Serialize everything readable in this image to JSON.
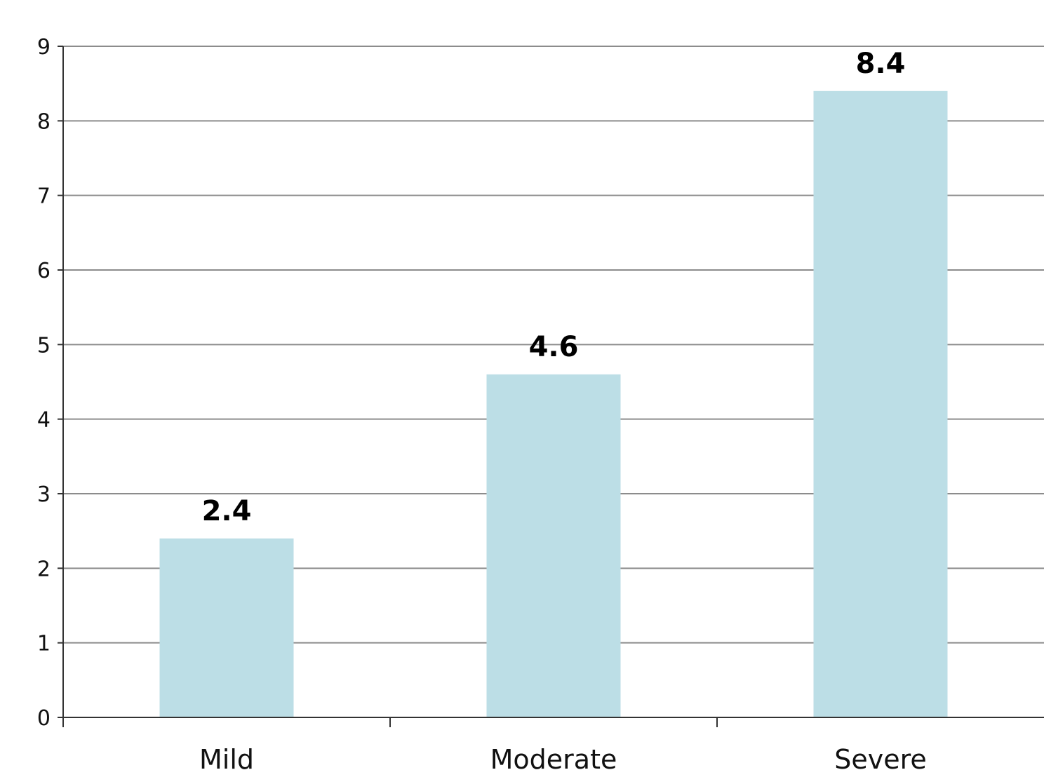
{
  "chart_data": {
    "type": "bar",
    "categories": [
      "Mild",
      "Moderate",
      "Severe"
    ],
    "values": [
      2.4,
      4.6,
      8.4
    ],
    "data_labels": [
      "2.4",
      "4.6",
      "8.4"
    ],
    "title": "",
    "xlabel": "",
    "ylabel": "",
    "ylim": [
      0,
      9
    ],
    "yticks": [
      "0",
      "1",
      "2",
      "3",
      "4",
      "5",
      "6",
      "7",
      "8",
      "9"
    ],
    "grid": true,
    "legend": "none",
    "bar_color": "#bcdee6"
  }
}
